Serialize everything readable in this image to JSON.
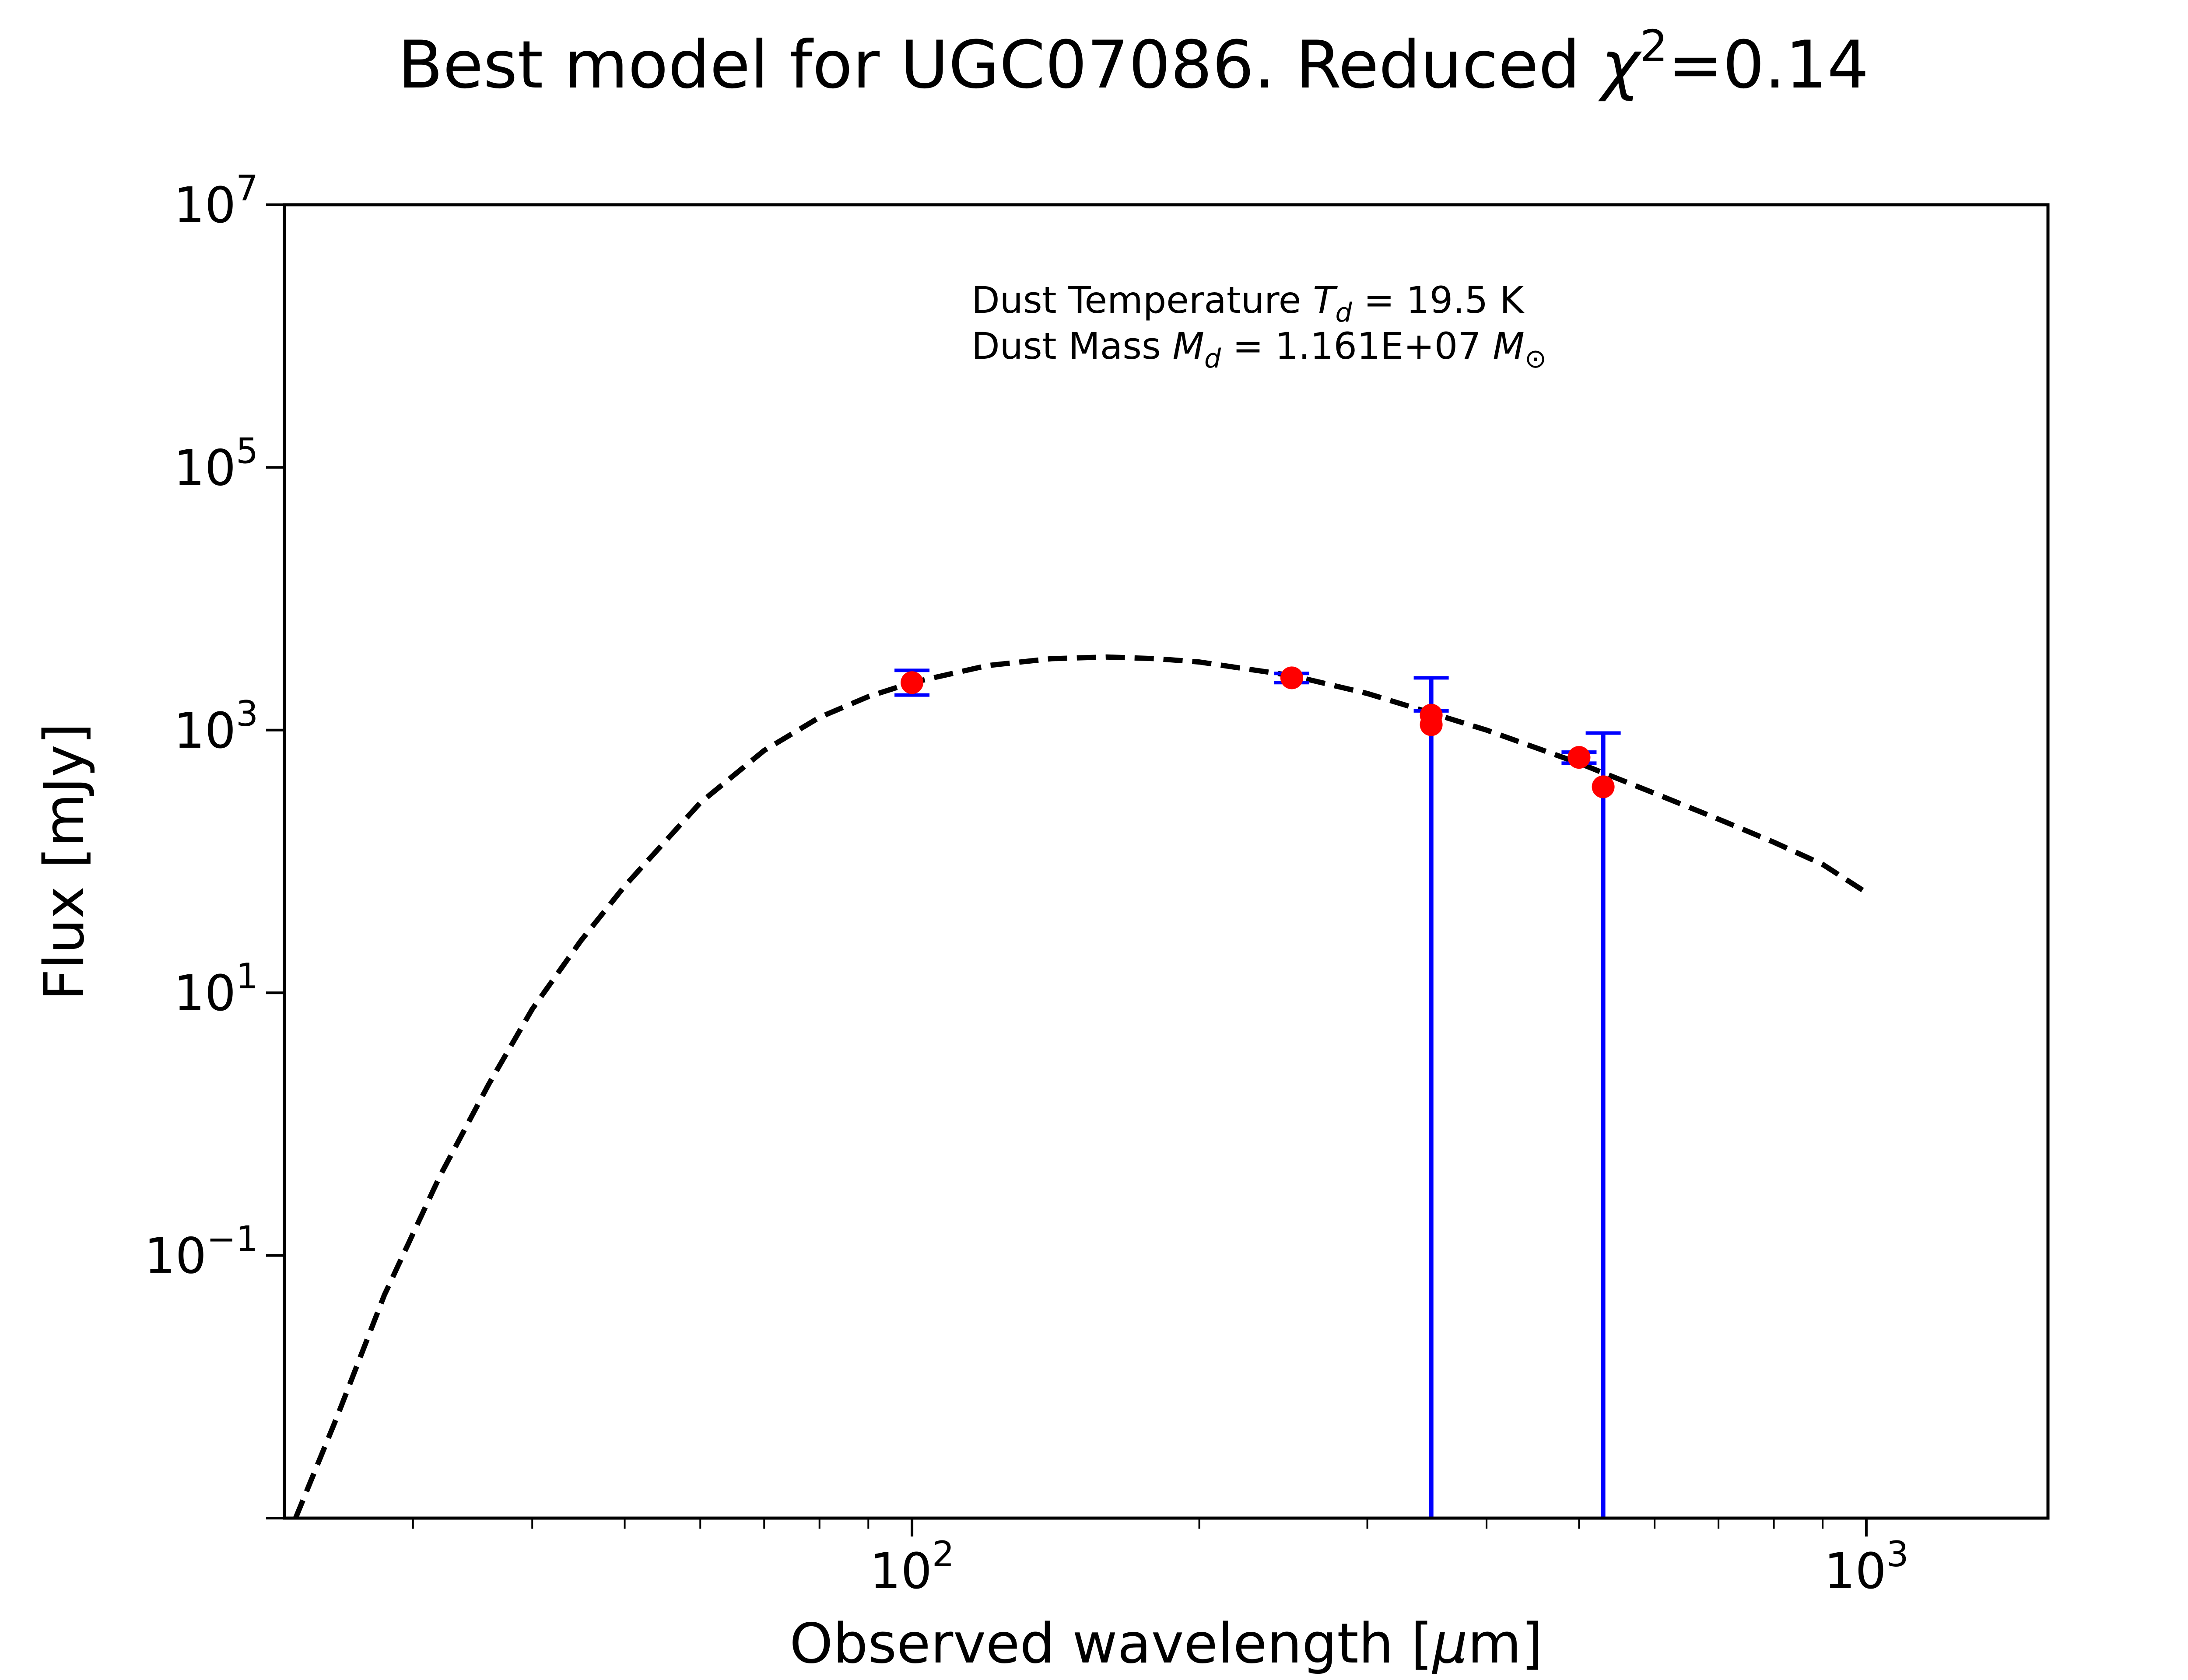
{
  "chart_data": {
    "type": "scatter",
    "title": {
      "main": "Best model for UGC07086. Reduced ",
      "chi": "χ",
      "sup": "2",
      "value": "=0.14"
    },
    "xlabel": {
      "main": "Observed wavelength [",
      "mu": "μ",
      "unit": "m]"
    },
    "ylabel": "Flux [mJy]",
    "x_scale": "log",
    "y_scale": "log",
    "xlim": [
      22,
      1550
    ],
    "ylim": [
      0.001,
      10000000
    ],
    "x_ticks": [
      {
        "value": 100,
        "base": "10",
        "exp": "2"
      },
      {
        "value": 1000,
        "base": "10",
        "exp": "3"
      }
    ],
    "y_ticks": [
      {
        "value": 0.1,
        "base": "10",
        "exp": "−1"
      },
      {
        "value": 10,
        "base": "10",
        "exp": "1"
      },
      {
        "value": 1000,
        "base": "10",
        "exp": "3"
      },
      {
        "value": 100000,
        "base": "10",
        "exp": "5"
      },
      {
        "value": 10000000,
        "base": "10",
        "exp": "7"
      }
    ],
    "annotations": {
      "line1": {
        "prefix": "Dust Temperature ",
        "var": "T",
        "sub": "d",
        "suffix": " = 19.5 K"
      },
      "line2": {
        "prefix": "Dust Mass ",
        "var": "M",
        "sub": "d",
        "middle": " = 1.161E+07 ",
        "var2": "M",
        "sub2": "⊙"
      }
    },
    "model": {
      "style": "dashed",
      "color": "#000000",
      "points": [
        [
          22.6,
          0.00095
        ],
        [
          25,
          0.006
        ],
        [
          28,
          0.05
        ],
        [
          32,
          0.4
        ],
        [
          36,
          2
        ],
        [
          40,
          7.5
        ],
        [
          45,
          25
        ],
        [
          50,
          65
        ],
        [
          60,
          280
        ],
        [
          70,
          700
        ],
        [
          80,
          1250
        ],
        [
          90,
          1800
        ],
        [
          100,
          2300
        ],
        [
          120,
          3100
        ],
        [
          140,
          3500
        ],
        [
          160,
          3600
        ],
        [
          180,
          3500
        ],
        [
          200,
          3300
        ],
        [
          250,
          2600
        ],
        [
          300,
          1900
        ],
        [
          350,
          1350
        ],
        [
          400,
          1000
        ],
        [
          500,
          560
        ],
        [
          600,
          330
        ],
        [
          700,
          210
        ],
        [
          800,
          140
        ],
        [
          900,
          95
        ],
        [
          1000,
          58
        ]
      ]
    },
    "data_points": [
      {
        "x": 100,
        "y": 2300,
        "yerr_low": 1850,
        "yerr_high": 2850
      },
      {
        "x": 250,
        "y": 2500,
        "yerr_low": 2300,
        "yerr_high": 2700
      },
      {
        "x": 350,
        "y": 1300,
        "yerr_low": 0.001,
        "yerr_high": 2500
      },
      {
        "x": 350,
        "y": 1100,
        "yerr_low": 0.001,
        "yerr_high": 1400
      },
      {
        "x": 500,
        "y": 620,
        "yerr_low": 560,
        "yerr_high": 680
      },
      {
        "x": 530,
        "y": 370,
        "yerr_low": 0.001,
        "yerr_high": 950
      }
    ],
    "colors": {
      "points": "#ff0000",
      "errorbars": "#0000ff",
      "model": "#000000",
      "axes": "#000000"
    }
  }
}
